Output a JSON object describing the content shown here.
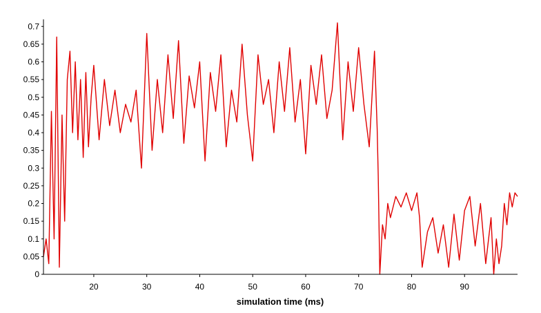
{
  "chart_data": {
    "type": "line",
    "title": "",
    "xlabel": "simulation time (ms)",
    "ylabel": "",
    "xlim": [
      10.5,
      100
    ],
    "ylim": [
      0,
      0.72
    ],
    "x_ticks": [
      20,
      30,
      40,
      50,
      60,
      70,
      80,
      90
    ],
    "y_ticks": [
      0,
      0.05,
      0.1,
      0.15,
      0.2,
      0.25,
      0.3,
      0.35,
      0.4,
      0.45,
      0.5,
      0.55,
      0.6,
      0.65,
      0.7
    ],
    "x_tick_labels": [
      "20",
      "30",
      "40",
      "50",
      "60",
      "70",
      "80",
      "90"
    ],
    "y_tick_labels": [
      "0",
      "0.05",
      "0.1",
      "0.15",
      "0.2",
      "0.25",
      "0.3",
      "0.35",
      "0.4",
      "0.45",
      "0.5",
      "0.55",
      "0.6",
      "0.65",
      "0.7"
    ],
    "grid": false,
    "series": [
      {
        "color": "#e00000",
        "x": [
          10.5,
          11,
          11.5,
          12,
          12.5,
          13,
          13.5,
          14,
          14.5,
          15,
          15.5,
          16,
          16.5,
          17,
          17.5,
          18,
          18.5,
          19,
          19.5,
          20,
          21,
          22,
          23,
          24,
          25,
          26,
          27,
          28,
          29,
          30,
          31,
          32,
          33,
          34,
          35,
          36,
          37,
          38,
          39,
          40,
          41,
          42,
          43,
          44,
          45,
          46,
          47,
          48,
          49,
          50,
          51,
          52,
          53,
          54,
          55,
          56,
          57,
          58,
          59,
          60,
          61,
          62,
          63,
          64,
          65,
          66,
          67,
          68,
          69,
          70,
          71,
          72,
          73,
          73.5,
          73.7,
          74,
          74.5,
          75,
          75.5,
          76,
          77,
          78,
          79,
          80,
          81,
          81.5,
          82,
          83,
          84,
          85,
          86,
          87,
          88,
          89,
          90,
          91,
          92,
          93,
          94,
          95,
          95.5,
          96,
          96.5,
          97,
          97.5,
          98,
          98.5,
          99,
          99.5,
          100
        ],
        "y": [
          0.05,
          0.1,
          0.03,
          0.46,
          0.1,
          0.67,
          0.02,
          0.45,
          0.15,
          0.55,
          0.63,
          0.4,
          0.6,
          0.38,
          0.55,
          0.33,
          0.57,
          0.36,
          0.5,
          0.59,
          0.38,
          0.55,
          0.42,
          0.52,
          0.4,
          0.48,
          0.43,
          0.52,
          0.3,
          0.68,
          0.35,
          0.55,
          0.4,
          0.62,
          0.44,
          0.66,
          0.37,
          0.56,
          0.47,
          0.6,
          0.32,
          0.57,
          0.46,
          0.62,
          0.36,
          0.52,
          0.43,
          0.65,
          0.45,
          0.32,
          0.62,
          0.48,
          0.55,
          0.4,
          0.6,
          0.46,
          0.64,
          0.43,
          0.55,
          0.34,
          0.59,
          0.48,
          0.62,
          0.44,
          0.52,
          0.71,
          0.38,
          0.6,
          0.46,
          0.64,
          0.48,
          0.36,
          0.63,
          0.41,
          0.28,
          0.0,
          0.14,
          0.1,
          0.2,
          0.16,
          0.22,
          0.19,
          0.23,
          0.18,
          0.23,
          0.16,
          0.02,
          0.12,
          0.16,
          0.06,
          0.14,
          0.02,
          0.17,
          0.04,
          0.18,
          0.22,
          0.08,
          0.2,
          0.03,
          0.16,
          0.0,
          0.1,
          0.03,
          0.08,
          0.2,
          0.14,
          0.23,
          0.19,
          0.23,
          0.22
        ]
      }
    ]
  }
}
